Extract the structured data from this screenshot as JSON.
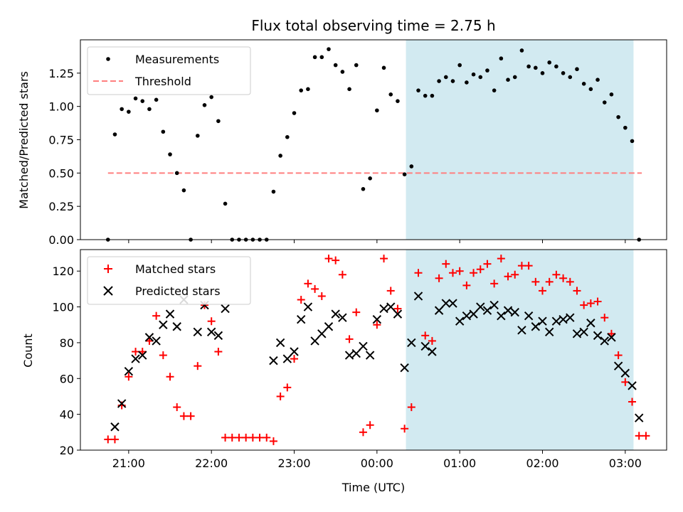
{
  "chart_data": [
    {
      "type": "scatter",
      "title": "Flux total observing time = 2.75 h",
      "xlabel": "",
      "ylabel": "Matched/Predicted stars",
      "ylim": [
        0,
        1.5
      ],
      "yticks": [
        "0.00",
        "0.25",
        "0.50",
        "0.75",
        "1.00",
        "1.25"
      ],
      "shaded_region": {
        "x_start": "00:21",
        "x_end": "03:06",
        "color": "#add8e6"
      },
      "legend": {
        "position": "top-left",
        "entries": [
          "Measurements",
          "Threshold"
        ]
      },
      "threshold": {
        "name": "Threshold",
        "value": 0.5,
        "x_start": "20:45",
        "x_end": "03:12",
        "color": "#ff7f7f"
      },
      "series": [
        {
          "name": "Measurements",
          "color": "#000000",
          "points": [
            [
              "20:45",
              0.0
            ],
            [
              "20:50",
              0.79
            ],
            [
              "20:55",
              0.98
            ],
            [
              "21:00",
              0.96
            ],
            [
              "21:05",
              1.06
            ],
            [
              "21:10",
              1.04
            ],
            [
              "21:15",
              0.98
            ],
            [
              "21:20",
              1.05
            ],
            [
              "21:25",
              0.81
            ],
            [
              "21:30",
              0.64
            ],
            [
              "21:35",
              0.5
            ],
            [
              "21:40",
              0.37
            ],
            [
              "21:45",
              0.0
            ],
            [
              "21:50",
              0.78
            ],
            [
              "21:55",
              1.01
            ],
            [
              "22:00",
              1.07
            ],
            [
              "22:05",
              0.89
            ],
            [
              "22:10",
              0.27
            ],
            [
              "22:15",
              0.0
            ],
            [
              "22:20",
              0.0
            ],
            [
              "22:25",
              0.0
            ],
            [
              "22:30",
              0.0
            ],
            [
              "22:35",
              0.0
            ],
            [
              "22:40",
              0.0
            ],
            [
              "22:45",
              0.36
            ],
            [
              "22:50",
              0.63
            ],
            [
              "22:55",
              0.77
            ],
            [
              "23:00",
              0.95
            ],
            [
              "23:05",
              1.12
            ],
            [
              "23:10",
              1.13
            ],
            [
              "23:15",
              1.37
            ],
            [
              "23:20",
              1.37
            ],
            [
              "23:25",
              1.43
            ],
            [
              "23:30",
              1.31
            ],
            [
              "23:35",
              1.26
            ],
            [
              "23:40",
              1.13
            ],
            [
              "23:45",
              1.31
            ],
            [
              "23:50",
              0.38
            ],
            [
              "23:55",
              0.46
            ],
            [
              "00:00",
              0.97
            ],
            [
              "00:05",
              1.29
            ],
            [
              "00:10",
              1.09
            ],
            [
              "00:15",
              1.04
            ],
            [
              "00:20",
              0.49
            ],
            [
              "00:25",
              0.55
            ],
            [
              "00:30",
              1.12
            ],
            [
              "00:35",
              1.08
            ],
            [
              "00:40",
              1.08
            ],
            [
              "00:45",
              1.19
            ],
            [
              "00:50",
              1.22
            ],
            [
              "00:55",
              1.19
            ],
            [
              "01:00",
              1.31
            ],
            [
              "01:05",
              1.18
            ],
            [
              "01:10",
              1.24
            ],
            [
              "01:15",
              1.22
            ],
            [
              "01:20",
              1.27
            ],
            [
              "01:25",
              1.12
            ],
            [
              "01:30",
              1.36
            ],
            [
              "01:35",
              1.2
            ],
            [
              "01:40",
              1.22
            ],
            [
              "01:45",
              1.42
            ],
            [
              "01:50",
              1.3
            ],
            [
              "01:55",
              1.29
            ],
            [
              "02:00",
              1.25
            ],
            [
              "02:05",
              1.33
            ],
            [
              "02:10",
              1.3
            ],
            [
              "02:15",
              1.25
            ],
            [
              "02:20",
              1.22
            ],
            [
              "02:25",
              1.28
            ],
            [
              "02:30",
              1.17
            ],
            [
              "02:35",
              1.13
            ],
            [
              "02:40",
              1.2
            ],
            [
              "02:45",
              1.03
            ],
            [
              "02:50",
              1.09
            ],
            [
              "02:55",
              0.92
            ],
            [
              "03:00",
              0.84
            ],
            [
              "03:05",
              0.74
            ],
            [
              "03:10",
              0.0
            ]
          ]
        }
      ]
    },
    {
      "type": "scatter",
      "title": "",
      "xlabel": "Time (UTC)",
      "ylabel": "Count",
      "ylim": [
        20,
        132
      ],
      "yticks": [
        "20",
        "40",
        "60",
        "80",
        "100",
        "120"
      ],
      "xticks": [
        "21:00",
        "22:00",
        "23:00",
        "00:00",
        "01:00",
        "02:00",
        "03:00"
      ],
      "xlim": [
        "20:25",
        "03:30"
      ],
      "shaded_region": {
        "x_start": "00:21",
        "x_end": "03:06",
        "color": "#add8e6"
      },
      "legend": {
        "position": "top-left",
        "entries": [
          "Matched stars",
          "Predicted stars"
        ]
      },
      "series": [
        {
          "name": "Matched stars",
          "marker": "plus",
          "color": "#ff0000",
          "points": [
            [
              "20:45",
              26
            ],
            [
              "20:50",
              26
            ],
            [
              "20:55",
              45
            ],
            [
              "21:00",
              61
            ],
            [
              "21:05",
              75
            ],
            [
              "21:10",
              75
            ],
            [
              "21:15",
              81
            ],
            [
              "21:20",
              95
            ],
            [
              "21:25",
              73
            ],
            [
              "21:30",
              61
            ],
            [
              "21:35",
              44
            ],
            [
              "21:40",
              39
            ],
            [
              "21:45",
              39
            ],
            [
              "21:50",
              67
            ],
            [
              "21:55",
              101
            ],
            [
              "22:00",
              92
            ],
            [
              "22:05",
              75
            ],
            [
              "22:10",
              27
            ],
            [
              "22:15",
              27
            ],
            [
              "22:20",
              27
            ],
            [
              "22:25",
              27
            ],
            [
              "22:30",
              27
            ],
            [
              "22:35",
              27
            ],
            [
              "22:40",
              27
            ],
            [
              "22:45",
              25
            ],
            [
              "22:50",
              50
            ],
            [
              "22:55",
              55
            ],
            [
              "23:00",
              71
            ],
            [
              "23:05",
              104
            ],
            [
              "23:10",
              113
            ],
            [
              "23:15",
              110
            ],
            [
              "23:20",
              106
            ],
            [
              "23:25",
              127
            ],
            [
              "23:30",
              126
            ],
            [
              "23:35",
              118
            ],
            [
              "23:40",
              82
            ],
            [
              "23:45",
              97
            ],
            [
              "23:50",
              30
            ],
            [
              "23:55",
              34
            ],
            [
              "00:00",
              90
            ],
            [
              "00:05",
              127
            ],
            [
              "00:10",
              109
            ],
            [
              "00:15",
              99
            ],
            [
              "00:20",
              32
            ],
            [
              "00:25",
              44
            ],
            [
              "00:30",
              119
            ],
            [
              "00:35",
              84
            ],
            [
              "00:40",
              81
            ],
            [
              "00:45",
              116
            ],
            [
              "00:50",
              124
            ],
            [
              "00:55",
              119
            ],
            [
              "01:00",
              120
            ],
            [
              "01:05",
              112
            ],
            [
              "01:10",
              119
            ],
            [
              "01:15",
              121
            ],
            [
              "01:20",
              124
            ],
            [
              "01:25",
              113
            ],
            [
              "01:30",
              127
            ],
            [
              "01:35",
              117
            ],
            [
              "01:40",
              118
            ],
            [
              "01:45",
              123
            ],
            [
              "01:50",
              123
            ],
            [
              "01:55",
              114
            ],
            [
              "02:00",
              109
            ],
            [
              "02:05",
              114
            ],
            [
              "02:10",
              118
            ],
            [
              "02:15",
              116
            ],
            [
              "02:20",
              114
            ],
            [
              "02:25",
              109
            ],
            [
              "02:30",
              101
            ],
            [
              "02:35",
              102
            ],
            [
              "02:40",
              103
            ],
            [
              "02:45",
              94
            ],
            [
              "02:50",
              85
            ],
            [
              "02:55",
              73
            ],
            [
              "03:00",
              58
            ],
            [
              "03:05",
              47
            ],
            [
              "03:10",
              28
            ],
            [
              "03:15",
              28
            ]
          ]
        },
        {
          "name": "Predicted stars",
          "marker": "x",
          "color": "#000000",
          "points": [
            [
              "20:50",
              33
            ],
            [
              "20:55",
              46
            ],
            [
              "21:00",
              64
            ],
            [
              "21:05",
              71
            ],
            [
              "21:10",
              73
            ],
            [
              "21:15",
              83
            ],
            [
              "21:20",
              81
            ],
            [
              "21:25",
              90
            ],
            [
              "21:30",
              96
            ],
            [
              "21:35",
              89
            ],
            [
              "21:40",
              104
            ],
            [
              "21:50",
              86
            ],
            [
              "21:55",
              101
            ],
            [
              "22:00",
              86
            ],
            [
              "22:05",
              84
            ],
            [
              "22:10",
              99
            ],
            [
              "22:45",
              70
            ],
            [
              "22:50",
              80
            ],
            [
              "22:55",
              71
            ],
            [
              "23:00",
              75
            ],
            [
              "23:05",
              93
            ],
            [
              "23:10",
              100
            ],
            [
              "23:15",
              81
            ],
            [
              "23:20",
              85
            ],
            [
              "23:25",
              89
            ],
            [
              "23:30",
              96
            ],
            [
              "23:35",
              94
            ],
            [
              "23:40",
              73
            ],
            [
              "23:45",
              74
            ],
            [
              "23:50",
              78
            ],
            [
              "23:55",
              73
            ],
            [
              "00:00",
              93
            ],
            [
              "00:05",
              99
            ],
            [
              "00:10",
              100
            ],
            [
              "00:15",
              96
            ],
            [
              "00:20",
              66
            ],
            [
              "00:25",
              80
            ],
            [
              "00:30",
              106
            ],
            [
              "00:35",
              78
            ],
            [
              "00:40",
              75
            ],
            [
              "00:45",
              98
            ],
            [
              "00:50",
              102
            ],
            [
              "00:55",
              102
            ],
            [
              "01:00",
              92
            ],
            [
              "01:05",
              95
            ],
            [
              "01:10",
              96
            ],
            [
              "01:15",
              100
            ],
            [
              "01:20",
              98
            ],
            [
              "01:25",
              101
            ],
            [
              "01:30",
              95
            ],
            [
              "01:35",
              98
            ],
            [
              "01:40",
              97
            ],
            [
              "01:45",
              87
            ],
            [
              "01:50",
              95
            ],
            [
              "01:55",
              89
            ],
            [
              "02:00",
              92
            ],
            [
              "02:05",
              86
            ],
            [
              "02:10",
              92
            ],
            [
              "02:15",
              93
            ],
            [
              "02:20",
              94
            ],
            [
              "02:25",
              85
            ],
            [
              "02:30",
              86
            ],
            [
              "02:35",
              91
            ],
            [
              "02:40",
              84
            ],
            [
              "02:45",
              81
            ],
            [
              "02:50",
              83
            ],
            [
              "02:55",
              67
            ],
            [
              "03:00",
              63
            ],
            [
              "03:05",
              56
            ],
            [
              "03:10",
              38
            ]
          ]
        }
      ]
    }
  ]
}
